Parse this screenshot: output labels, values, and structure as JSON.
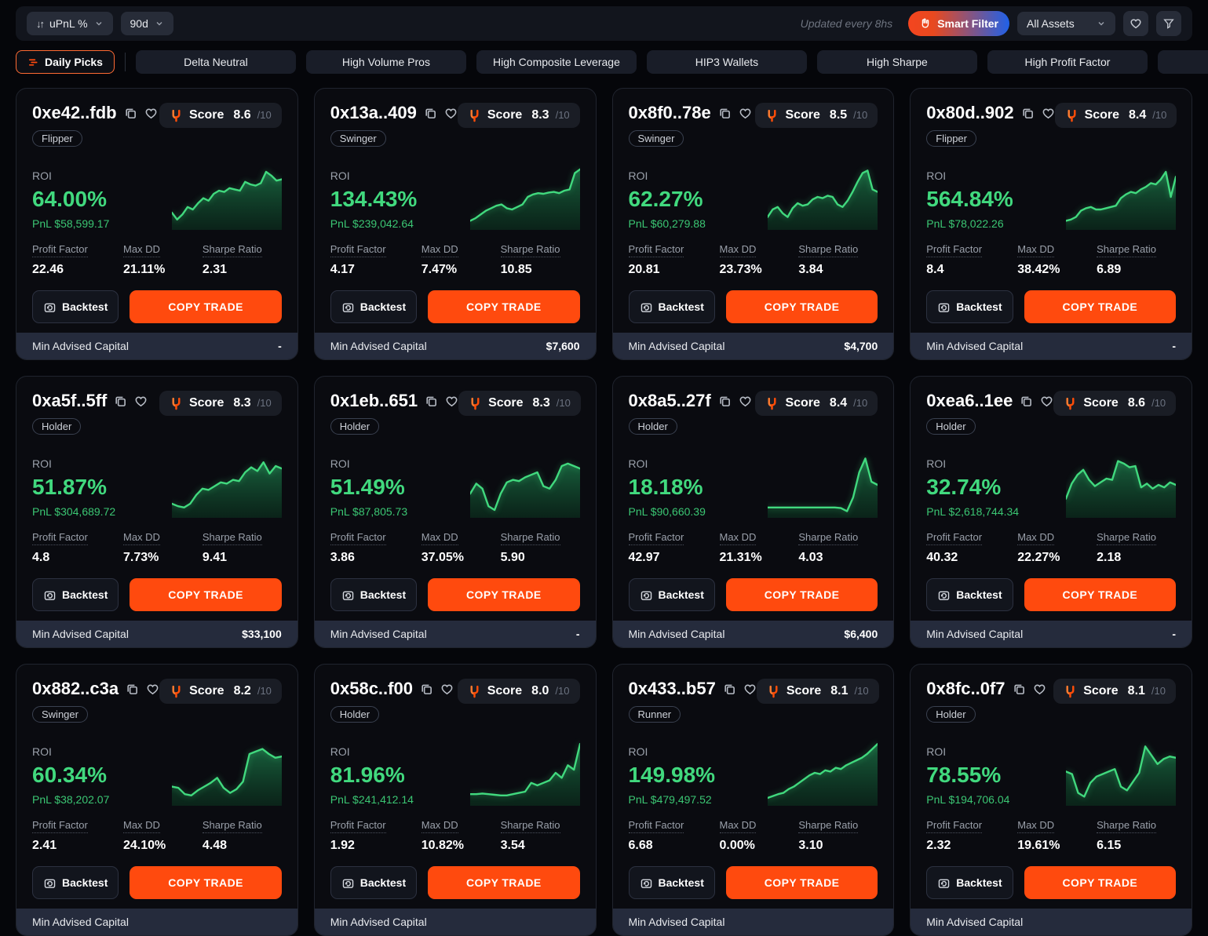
{
  "toolbar": {
    "sort_label": "uPnL %",
    "period_label": "90d",
    "updated_text": "Updated every 8hs",
    "smart_filter_label": "Smart Filter",
    "assets_label": "All Assets"
  },
  "tabs": [
    {
      "label": "Daily Picks",
      "active": true
    },
    {
      "label": "Delta Neutral"
    },
    {
      "label": "High Volume Pros"
    },
    {
      "label": "High Composite Leverage"
    },
    {
      "label": "HIP3 Wallets"
    },
    {
      "label": "High Sharpe"
    },
    {
      "label": "High Profit Factor"
    },
    {
      "label": ""
    }
  ],
  "labels": {
    "roi": "ROI",
    "pnl": "PnL",
    "profit_factor": "Profit Factor",
    "max_dd": "Max DD",
    "sharpe_ratio": "Sharpe Ratio",
    "backtest": "Backtest",
    "copy_trade": "COPY TRADE",
    "min_advised_capital": "Min Advised Capital",
    "score": "Score",
    "score_denom": "/10"
  },
  "colors": {
    "accent_orange": "#ff4a0e",
    "green": "#41d97e",
    "smart_filter_gradient_left": "#f4451f",
    "smart_filter_gradient_right": "#2061e8",
    "footer_bg": "#252b3c"
  },
  "cards": [
    {
      "address": "0xe42..fdb",
      "tag": "Flipper",
      "score": "8.6",
      "roi": "64.00%",
      "pnl": "$58,599.17",
      "profit_factor": "22.46",
      "max_dd": "21.11%",
      "sharpe_ratio": "2.31",
      "min_advised_capital": "-",
      "spark": [
        25,
        14,
        22,
        34,
        30,
        40,
        48,
        44,
        55,
        60,
        58,
        64,
        62,
        60,
        74,
        70,
        68,
        72,
        90,
        84,
        76,
        78
      ]
    },
    {
      "address": "0x13a..409",
      "tag": "Swinger",
      "score": "8.3",
      "roi": "134.43%",
      "pnl": "$239,042.64",
      "profit_factor": "4.17",
      "max_dd": "7.47%",
      "sharpe_ratio": "10.85",
      "min_advised_capital": "$7,600",
      "spark": [
        12,
        16,
        22,
        28,
        32,
        36,
        38,
        32,
        30,
        34,
        38,
        50,
        54,
        56,
        55,
        57,
        58,
        56,
        60,
        62,
        88,
        94
      ]
    },
    {
      "address": "0x8f0..78e",
      "tag": "Swinger",
      "score": "8.5",
      "roi": "62.27%",
      "pnl": "$60,279.88",
      "profit_factor": "20.81",
      "max_dd": "23.73%",
      "sharpe_ratio": "3.84",
      "min_advised_capital": "$4,700",
      "spark": [
        18,
        30,
        34,
        24,
        18,
        32,
        40,
        36,
        38,
        46,
        50,
        48,
        52,
        50,
        38,
        34,
        44,
        58,
        74,
        88,
        92,
        62,
        58
      ]
    },
    {
      "address": "0x80d..902",
      "tag": "Flipper",
      "score": "8.4",
      "roi": "564.84%",
      "pnl": "$78,022.26",
      "profit_factor": "8.4",
      "max_dd": "38.42%",
      "sharpe_ratio": "6.89",
      "min_advised_capital": "-",
      "spark": [
        12,
        14,
        18,
        28,
        32,
        34,
        30,
        30,
        32,
        34,
        36,
        48,
        54,
        58,
        56,
        62,
        66,
        72,
        70,
        78,
        90,
        50,
        82
      ]
    },
    {
      "address": "0xa5f..5ff",
      "tag": "Holder",
      "score": "8.3",
      "roi": "51.87%",
      "pnl": "$304,689.72",
      "profit_factor": "4.8",
      "max_dd": "7.73%",
      "sharpe_ratio": "9.41",
      "min_advised_capital": "$33,100",
      "spark": [
        20,
        16,
        14,
        20,
        34,
        44,
        42,
        48,
        54,
        52,
        58,
        56,
        70,
        78,
        72,
        86,
        68,
        80,
        76
      ]
    },
    {
      "address": "0x1eb..651",
      "tag": "Holder",
      "score": "8.3",
      "roi": "51.49%",
      "pnl": "$87,805.73",
      "profit_factor": "3.86",
      "max_dd": "37.05%",
      "sharpe_ratio": "5.90",
      "min_advised_capital": "-",
      "spark": [
        36,
        52,
        44,
        16,
        10,
        36,
        54,
        58,
        56,
        62,
        66,
        70,
        48,
        44,
        58,
        80,
        84,
        80,
        76
      ]
    },
    {
      "address": "0x8a5..27f",
      "tag": "Holder",
      "score": "8.4",
      "roi": "18.18%",
      "pnl": "$90,660.39",
      "profit_factor": "42.97",
      "max_dd": "21.31%",
      "sharpe_ratio": "4.03",
      "min_advised_capital": "$6,400",
      "spark": [
        14,
        14,
        14,
        14,
        14,
        14,
        14,
        14,
        14,
        14,
        14,
        14,
        13,
        8,
        30,
        70,
        92,
        55,
        50
      ]
    },
    {
      "address": "0xea6..1ee",
      "tag": "Holder",
      "score": "8.6",
      "roi": "32.74%",
      "pnl": "$2,618,744.34",
      "profit_factor": "40.32",
      "max_dd": "22.27%",
      "sharpe_ratio": "2.18",
      "min_advised_capital": "-",
      "spark": [
        28,
        52,
        66,
        74,
        58,
        48,
        54,
        60,
        58,
        88,
        84,
        78,
        80,
        46,
        52,
        44,
        50,
        46,
        54,
        50
      ]
    },
    {
      "address": "0x882..c3a",
      "tag": "Swinger",
      "score": "8.2",
      "roi": "60.34%",
      "pnl": "$38,202.07",
      "profit_factor": "2.41",
      "max_dd": "24.10%",
      "sharpe_ratio": "4.48",
      "min_advised_capital": "",
      "spark": [
        28,
        26,
        16,
        14,
        22,
        28,
        34,
        42,
        26,
        18,
        24,
        36,
        80,
        84,
        88,
        80,
        74,
        76
      ]
    },
    {
      "address": "0x58c..f00",
      "tag": "Holder",
      "score": "8.0",
      "roi": "81.96%",
      "pnl": "$241,412.14",
      "profit_factor": "1.92",
      "max_dd": "10.82%",
      "sharpe_ratio": "3.54",
      "min_advised_capital": "",
      "spark": [
        16,
        16,
        17,
        16,
        15,
        14,
        14,
        16,
        18,
        20,
        34,
        30,
        34,
        38,
        50,
        42,
        62,
        55,
        96
      ]
    },
    {
      "address": "0x433..b57",
      "tag": "Runner",
      "score": "8.1",
      "roi": "149.98%",
      "pnl": "$479,497.52",
      "profit_factor": "6.68",
      "max_dd": "0.00%",
      "sharpe_ratio": "3.10",
      "min_advised_capital": "",
      "spark": [
        10,
        13,
        16,
        18,
        24,
        28,
        34,
        40,
        46,
        50,
        48,
        54,
        52,
        58,
        56,
        62,
        66,
        70,
        74,
        80,
        88,
        96
      ]
    },
    {
      "address": "0x8fc..0f7",
      "tag": "Holder",
      "score": "8.1",
      "roi": "78.55%",
      "pnl": "$194,706.04",
      "profit_factor": "2.32",
      "max_dd": "19.61%",
      "sharpe_ratio": "6.15",
      "min_advised_capital": "",
      "spark": [
        52,
        48,
        18,
        12,
        34,
        44,
        48,
        52,
        56,
        28,
        22,
        36,
        50,
        92,
        78,
        64,
        72,
        76,
        74
      ]
    }
  ]
}
